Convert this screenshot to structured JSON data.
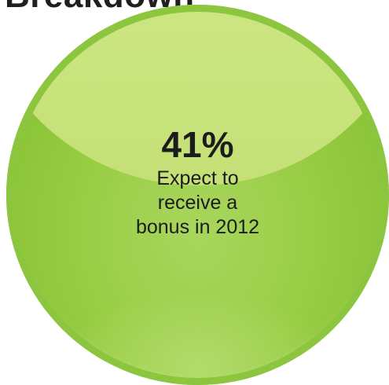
{
  "heading": "Breakdown",
  "stat": {
    "value": "41%",
    "lines": [
      "Expect to",
      "receive a",
      "bonus in 2012"
    ]
  },
  "colors": {
    "circle_fill": "#98cd43",
    "circle_highlight": "#cde683",
    "circle_rim": "#8cc63f",
    "text": "#1c1c1c"
  }
}
